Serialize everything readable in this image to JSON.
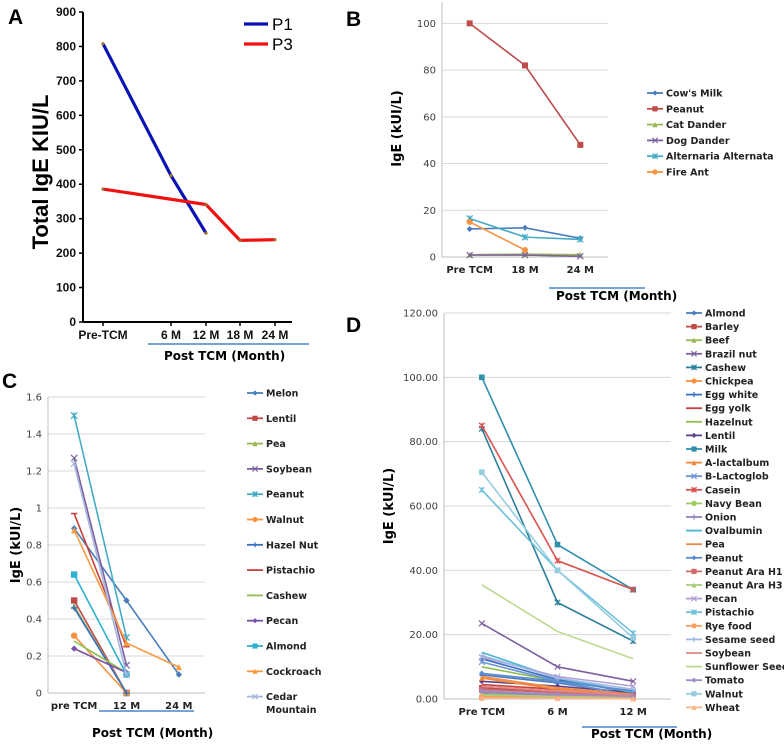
{
  "chart_data": [
    {
      "panel": "A",
      "type": "line",
      "title": "",
      "xlabel": "Post TCM (Month)",
      "ylabel": "Total IgE KIU/L",
      "categories": [
        "Pre-TCM",
        "6 M",
        "12 M",
        "18 M",
        "24 M"
      ],
      "x_positions": [
        0,
        6,
        12,
        18,
        24
      ],
      "ylim": [
        0,
        900
      ],
      "yticks": [
        0,
        100,
        200,
        300,
        400,
        500,
        600,
        700,
        800,
        900
      ],
      "grid": false,
      "legend": "top-right",
      "series": [
        {
          "name": "P1",
          "color": "#0a14b4",
          "points": [
            [
              0,
              808
            ],
            [
              6,
              425
            ],
            [
              12,
              258
            ]
          ]
        },
        {
          "name": "P3",
          "color": "#f01010",
          "points": [
            [
              0,
              386
            ],
            [
              12,
              341
            ],
            [
              18,
              237
            ],
            [
              24,
              239
            ]
          ]
        }
      ]
    },
    {
      "panel": "B",
      "type": "line",
      "title": "",
      "xlabel": "Post TCM (Month)",
      "ylabel": "IgE (kUI/L)",
      "categories": [
        "Pre TCM",
        "18 M",
        "24 M"
      ],
      "ylim": [
        0,
        110
      ],
      "yticks": [
        0,
        20,
        40,
        60,
        80,
        100
      ],
      "grid": true,
      "legend": "right",
      "series": [
        {
          "name": "Cow's Milk",
          "color": "#4a7ebb",
          "marker": "diamond",
          "values": [
            12,
            12.5,
            8
          ]
        },
        {
          "name": "Peanut",
          "color": "#be4b48",
          "marker": "square",
          "values": [
            100,
            82,
            48
          ]
        },
        {
          "name": "Cat Dander",
          "color": "#98b954",
          "marker": "triangle",
          "values": [
            1,
            1.2,
            1
          ]
        },
        {
          "name": "Dog Dander",
          "color": "#7d60a0",
          "marker": "x",
          "values": [
            0.8,
            0.8,
            0.3
          ]
        },
        {
          "name": "Alternaria Alternata",
          "color": "#46aac5",
          "marker": "star",
          "values": [
            16.5,
            8.5,
            7.5
          ]
        },
        {
          "name": "Fire Ant",
          "color": "#f69240",
          "marker": "circle",
          "values": [
            15,
            3,
            null
          ]
        }
      ]
    },
    {
      "panel": "C",
      "type": "line",
      "title": "",
      "xlabel": "Post TCM (Month)",
      "ylabel": "IgE (kUI/L)",
      "categories": [
        "pre TCM",
        "12 M",
        "24 M"
      ],
      "ylim": [
        0,
        1.6
      ],
      "yticks": [
        0,
        0.2,
        0.4,
        0.6,
        0.8,
        1,
        1.2,
        1.4,
        1.6
      ],
      "grid": true,
      "legend": "right",
      "series": [
        {
          "name": "Melon",
          "color": "#4a7ebb",
          "marker": "diamond",
          "values": [
            0.89,
            0.5,
            0.1
          ]
        },
        {
          "name": "Lentil",
          "color": "#be4b48",
          "marker": "square",
          "values": [
            0.5,
            0,
            null
          ]
        },
        {
          "name": "Pea",
          "color": "#98b954",
          "marker": "triangle",
          "values": [
            0.47,
            0,
            null
          ]
        },
        {
          "name": "Soybean",
          "color": "#7d60a0",
          "marker": "x",
          "values": [
            1.27,
            0.15,
            null
          ]
        },
        {
          "name": "Peanut",
          "color": "#46aac5",
          "marker": "star",
          "values": [
            1.5,
            0.3,
            null
          ]
        },
        {
          "name": "Walnut",
          "color": "#f69240",
          "marker": "circle",
          "values": [
            0.31,
            0,
            null
          ]
        },
        {
          "name": "Hazel Nut",
          "color": "#3a6fc0",
          "marker": "plus",
          "values": [
            0.46,
            0,
            null
          ]
        },
        {
          "name": "Pistachio",
          "color": "#c8413c",
          "marker": "dash",
          "values": [
            0.97,
            0.25,
            null
          ]
        },
        {
          "name": "Cashew",
          "color": "#8fc050",
          "marker": "none",
          "values": [
            0.28,
            0.11,
            null
          ]
        },
        {
          "name": "Pecan",
          "color": "#7c52a8",
          "marker": "diamond",
          "values": [
            0.24,
            0.11,
            null
          ]
        },
        {
          "name": "Almond",
          "color": "#2fb0d0",
          "marker": "square",
          "values": [
            0.64,
            0.1,
            null
          ]
        },
        {
          "name": "Cockroach",
          "color": "#f79b42",
          "marker": "triangle",
          "values": [
            0.88,
            0.27,
            0.14
          ]
        },
        {
          "name": "Cedar Mountain",
          "color": "#a7b8de",
          "marker": "x",
          "values": [
            1.24,
            0.1,
            null
          ]
        }
      ]
    },
    {
      "panel": "D",
      "type": "line",
      "title": "",
      "xlabel": "Post TCM (Month)",
      "ylabel": "IgE (kUI/L)",
      "categories": [
        "Pre TCM",
        "6 M",
        "12 M"
      ],
      "ylim": [
        0,
        120
      ],
      "yticks": [
        "0.00",
        "20.00",
        "40.00",
        "60.00",
        "80.00",
        "100.00",
        "120.00"
      ],
      "grid": true,
      "legend": "right",
      "series": [
        {
          "name": "Almond",
          "color": "#4a7ebb",
          "marker": "diamond",
          "values": [
            7.5,
            5,
            1.5
          ]
        },
        {
          "name": "Barley",
          "color": "#be4b48",
          "marker": "square",
          "values": [
            3.5,
            2,
            1
          ]
        },
        {
          "name": "Beef",
          "color": "#98b954",
          "marker": "triangle",
          "values": [
            1.5,
            1,
            0.5
          ]
        },
        {
          "name": "Brazil nut",
          "color": "#7d60a0",
          "marker": "x",
          "values": [
            23.5,
            10,
            5.5
          ]
        },
        {
          "name": "Cashew",
          "color": "#2c7f9a",
          "marker": "star",
          "values": [
            84,
            30,
            18
          ]
        },
        {
          "name": "Chickpea",
          "color": "#f69240",
          "marker": "circle",
          "values": [
            0.8,
            0.5,
            0.3
          ]
        },
        {
          "name": "Egg white",
          "color": "#3a6fc0",
          "marker": "plus",
          "values": [
            12.5,
            6,
            2
          ]
        },
        {
          "name": "Egg yolk",
          "color": "#c8413c",
          "marker": "none",
          "values": [
            4.5,
            3,
            1.5
          ]
        },
        {
          "name": "Hazelnut",
          "color": "#8fc050",
          "marker": "none",
          "values": [
            10,
            5.5,
            2.5
          ]
        },
        {
          "name": "Lentil",
          "color": "#5c3f8a",
          "marker": "diamond",
          "values": [
            5.5,
            4,
            2
          ]
        },
        {
          "name": "Milk",
          "color": "#2f8fad",
          "marker": "square",
          "values": [
            100,
            48,
            34
          ]
        },
        {
          "name": "A-lactalbum",
          "color": "#f08a3a",
          "marker": "triangle",
          "values": [
            6.5,
            3,
            1.5
          ]
        },
        {
          "name": "B-Lactoglob",
          "color": "#6a93d4",
          "marker": "x",
          "values": [
            11.5,
            5.5,
            1
          ]
        },
        {
          "name": "Casein",
          "color": "#d9534f",
          "marker": "star",
          "values": [
            85,
            43,
            34
          ]
        },
        {
          "name": "Navy Bean",
          "color": "#9acd5a",
          "marker": "circle",
          "values": [
            2.5,
            1.5,
            0.8
          ]
        },
        {
          "name": "Onion",
          "color": "#9a82c2",
          "marker": "plus",
          "values": [
            2,
            1.2,
            0.6
          ]
        },
        {
          "name": "Ovalbumin",
          "color": "#4bb4d4",
          "marker": "none",
          "values": [
            14.5,
            6.5,
            2
          ]
        },
        {
          "name": "Pea",
          "color": "#f48a4a",
          "marker": "none",
          "values": [
            7,
            3.5,
            1.5
          ]
        },
        {
          "name": "Peanut",
          "color": "#5b8bd0",
          "marker": "diamond",
          "values": [
            8,
            5.5,
            2.5
          ]
        },
        {
          "name": "Peanut Ara H1",
          "color": "#d06a6a",
          "marker": "square",
          "values": [
            3,
            2,
            1
          ]
        },
        {
          "name": "Peanut Ara H3",
          "color": "#a8cf7a",
          "marker": "triangle",
          "values": [
            1.2,
            0.8,
            0.4
          ]
        },
        {
          "name": "Pecan",
          "color": "#b0a0d4",
          "marker": "x",
          "values": [
            13,
            7,
            4
          ]
        },
        {
          "name": "Pistachio",
          "color": "#6cc0dc",
          "marker": "star",
          "values": [
            65,
            40,
            20.5
          ]
        },
        {
          "name": "Rye food",
          "color": "#f7a060",
          "marker": "circle",
          "values": [
            0.5,
            0.3,
            0.2
          ]
        },
        {
          "name": "Sesame seed",
          "color": "#9fb8e6",
          "marker": "plus",
          "values": [
            13.5,
            6.5,
            3
          ]
        },
        {
          "name": "Soybean",
          "color": "#e08a8a",
          "marker": "none",
          "values": [
            4,
            2.5,
            1.2
          ]
        },
        {
          "name": "Sunflower Seed",
          "color": "#bcd98e",
          "marker": "none",
          "values": [
            35.5,
            21,
            12.5
          ]
        },
        {
          "name": "Tomato",
          "color": "#a08cc8",
          "marker": "diamond",
          "values": [
            2.5,
            1.5,
            0.8
          ]
        },
        {
          "name": "Walnut",
          "color": "#96cce0",
          "marker": "square",
          "values": [
            70.5,
            40,
            19
          ]
        },
        {
          "name": "Wheat",
          "color": "#f9b48a",
          "marker": "triangle",
          "values": [
            0.3,
            0.2,
            0.1
          ]
        }
      ]
    }
  ],
  "panels": {
    "A": {
      "letter": "A",
      "post_tcm": "Post TCM (Month)"
    },
    "B": {
      "letter": "B",
      "post_tcm": "Post TCM (Month)"
    },
    "C": {
      "letter": "C",
      "post_tcm": "Post TCM (Month)"
    },
    "D": {
      "letter": "D",
      "post_tcm": "Post TCM (Month)"
    }
  }
}
